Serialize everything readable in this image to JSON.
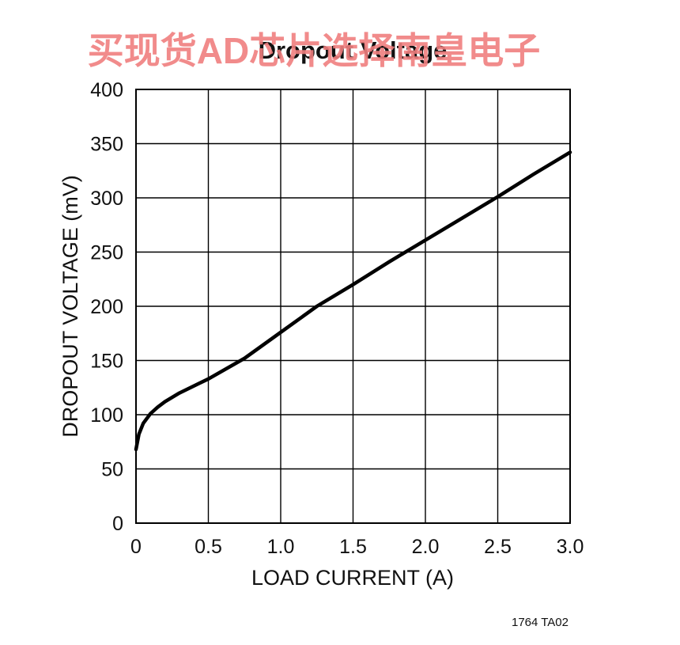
{
  "watermark": "买现货AD芯片选择南皇电子",
  "figure_code": "1764 TA02",
  "chart_data": {
    "type": "line",
    "title": "Dropout Voltage",
    "xlabel": "LOAD CURRENT (A)",
    "ylabel": "DROPOUT VOLTAGE (mV)",
    "xlim": [
      0,
      3
    ],
    "ylim": [
      0,
      400
    ],
    "x_ticks": [
      0,
      0.5,
      1.0,
      1.5,
      2.0,
      2.5,
      3.0
    ],
    "x_tick_labels": [
      "0",
      "0.5",
      "1.0",
      "1.5",
      "2.0",
      "2.5",
      "3.0"
    ],
    "y_ticks": [
      0,
      50,
      100,
      150,
      200,
      250,
      300,
      350,
      400
    ],
    "y_tick_labels": [
      "0",
      "50",
      "100",
      "150",
      "200",
      "250",
      "300",
      "350",
      "400"
    ],
    "grid": true,
    "colors": {
      "line": "#000000",
      "grid": "#000000",
      "watermark": "#f07e7e"
    },
    "series": [
      {
        "x": [
          0,
          0.02,
          0.05,
          0.1,
          0.15,
          0.2,
          0.3,
          0.5,
          0.75,
          1.0,
          1.25,
          1.5,
          1.75,
          2.0,
          2.25,
          2.5,
          2.75,
          3.0
        ],
        "values": [
          68,
          82,
          92,
          101,
          107,
          112,
          120,
          133,
          152,
          176,
          200,
          220,
          241,
          261,
          281,
          301,
          322,
          342
        ]
      }
    ]
  }
}
